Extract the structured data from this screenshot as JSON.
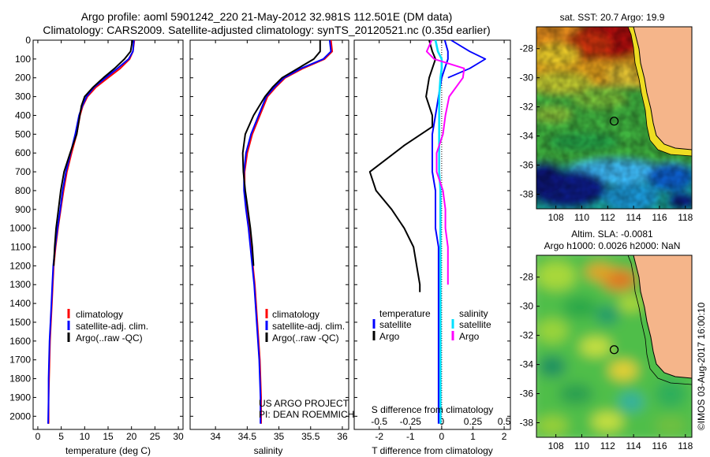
{
  "title": {
    "line1": "Argo profile: aoml 5901242_220 21-May-2012 32.981S 112.501E (DM data)",
    "line2": "Climatology: CARS2009. Satellite-adjusted climatology: synTS_20120521.nc (0.35d earlier)"
  },
  "colors": {
    "climatology": "#ff0000",
    "satellite": "#0000ff",
    "argo": "#000000",
    "salinity_satellite": "#00e0ff",
    "salinity_argo": "#ff00ff",
    "land": "#f5b58a"
  },
  "chart_data": [
    {
      "type": "line",
      "id": "temperature",
      "xlabel": "temperature (deg C)",
      "ylabel": "",
      "xlim": [
        -1,
        31
      ],
      "ylim": [
        2070,
        0
      ],
      "xticks": [
        0,
        5,
        10,
        15,
        20,
        25,
        30
      ],
      "yticks": [
        0,
        100,
        200,
        300,
        400,
        500,
        600,
        700,
        800,
        900,
        1000,
        1100,
        1200,
        1300,
        1400,
        1500,
        1600,
        1700,
        1800,
        1900,
        2000
      ],
      "legend": [
        "climatology",
        "satellite-adj. clim.",
        "Argo(..raw -QC)"
      ],
      "series": [
        {
          "name": "climatology",
          "color": "#ff0000",
          "x": [
            20.6,
            20.3,
            19.6,
            17.6,
            15.0,
            12.4,
            10.6,
            9.6,
            9.0,
            8.3,
            7.2,
            6.2,
            5.5,
            4.9,
            4.3,
            3.8,
            3.4,
            3.2,
            3.0,
            2.8,
            2.6,
            2.5,
            2.4,
            2.3,
            2.3
          ],
          "y": [
            0,
            60,
            100,
            150,
            200,
            250,
            300,
            350,
            400,
            500,
            600,
            700,
            800,
            900,
            1000,
            1100,
            1200,
            1300,
            1400,
            1500,
            1600,
            1700,
            1800,
            1900,
            2040
          ]
        },
        {
          "name": "satellite-adj. clim.",
          "color": "#0000ff",
          "x": [
            20.5,
            20.3,
            19.4,
            17.0,
            14.5,
            12.0,
            10.4,
            9.5,
            8.8,
            8.0,
            7.0,
            6.0,
            5.3,
            4.8,
            4.2,
            3.7,
            3.3,
            3.1,
            2.9,
            2.7,
            2.5,
            2.4,
            2.3,
            2.3,
            2.2
          ],
          "y": [
            0,
            60,
            100,
            150,
            200,
            250,
            300,
            350,
            400,
            500,
            600,
            700,
            800,
            900,
            1000,
            1100,
            1200,
            1300,
            1400,
            1500,
            1600,
            1700,
            1800,
            1900,
            2040
          ]
        },
        {
          "name": "Argo(..raw -QC)",
          "color": "#000000",
          "x": [
            20.2,
            19.8,
            18.5,
            16.4,
            14.0,
            11.8,
            10.0,
            9.3,
            8.3,
            6.9,
            5.6,
            4.9,
            4.4,
            3.9,
            3.6,
            3.4
          ],
          "y": [
            0,
            60,
            100,
            150,
            200,
            250,
            300,
            350,
            500,
            600,
            700,
            800,
            900,
            1000,
            1100,
            1200
          ]
        }
      ]
    },
    {
      "type": "line",
      "id": "salinity",
      "xlabel": "salinity",
      "ylabel": "",
      "xlim": [
        33.6,
        36.1
      ],
      "ylim": [
        2070,
        0
      ],
      "xticks": [
        34,
        34.5,
        35,
        35.5,
        36
      ],
      "legend": [
        "climatology",
        "satellite-adj. clim.",
        "Argo(..raw -QC)"
      ],
      "series": [
        {
          "name": "climatology",
          "color": "#ff0000",
          "x": [
            35.82,
            35.84,
            35.72,
            35.38,
            35.1,
            34.95,
            34.82,
            34.7,
            34.58,
            34.5,
            34.46,
            34.46,
            34.49,
            34.53,
            34.56,
            34.59,
            34.62,
            34.64,
            34.66,
            34.68,
            34.7,
            34.71,
            34.72,
            34.72,
            34.72
          ],
          "y": [
            0,
            60,
            100,
            150,
            200,
            250,
            300,
            400,
            500,
            600,
            700,
            800,
            900,
            1000,
            1100,
            1200,
            1300,
            1400,
            1500,
            1600,
            1700,
            1800,
            1900,
            2000,
            2040
          ]
        },
        {
          "name": "satellite-adj. clim.",
          "color": "#0000ff",
          "x": [
            35.8,
            35.82,
            35.7,
            35.35,
            35.08,
            34.93,
            34.8,
            34.68,
            34.56,
            34.48,
            34.45,
            34.45,
            34.48,
            34.52,
            34.55,
            34.58,
            34.61,
            34.63,
            34.65,
            34.67,
            34.69,
            34.7,
            34.71,
            34.71,
            34.71
          ],
          "y": [
            0,
            60,
            100,
            150,
            200,
            250,
            300,
            400,
            500,
            600,
            700,
            800,
            900,
            1000,
            1100,
            1200,
            1300,
            1400,
            1500,
            1600,
            1700,
            1800,
            1900,
            2000,
            2040
          ]
        },
        {
          "name": "Argo(..raw -QC)",
          "color": "#000000",
          "x": [
            35.65,
            35.65,
            35.55,
            35.3,
            35.05,
            34.9,
            34.78,
            34.6,
            34.47,
            34.43,
            34.44,
            34.47,
            34.51,
            34.55,
            34.58,
            34.6
          ],
          "y": [
            0,
            60,
            100,
            150,
            200,
            250,
            300,
            400,
            500,
            600,
            700,
            800,
            900,
            1000,
            1100,
            1200
          ]
        }
      ]
    },
    {
      "type": "line",
      "id": "differences",
      "xlabel": "T difference from climatology",
      "xlabel2": "S difference from climatology",
      "xlim": [
        -2.8,
        2.2
      ],
      "ylim": [
        2070,
        0
      ],
      "xticks": [
        -2,
        -1,
        0,
        1,
        2
      ],
      "xticks_s": [
        -0.5,
        -0.25,
        0,
        0.25,
        0.5
      ],
      "legend": {
        "temperature_heading": "temperature",
        "salinity_heading": "salinity",
        "satellite": "satellite",
        "argo": "Argo"
      },
      "series": [
        {
          "name": "temperature satellite",
          "color": "#0000ff",
          "x": [
            0.1,
            0.2,
            0.2,
            0.1,
            0.0,
            -0.1,
            -0.2,
            -0.3,
            -0.3,
            -0.3,
            -0.2,
            -0.2,
            -0.2,
            -0.1,
            -0.1,
            -0.1,
            -0.1,
            -0.1,
            -0.1,
            -0.1,
            -0.1,
            -0.1,
            -0.1,
            -0.1
          ],
          "y": [
            0,
            60,
            100,
            150,
            200,
            300,
            400,
            500,
            600,
            700,
            800,
            900,
            1000,
            1100,
            1200,
            1300,
            1400,
            1500,
            1600,
            1700,
            1800,
            1900,
            2000,
            2040
          ]
        },
        {
          "name": "temperature Argo",
          "color": "#000000",
          "x": [
            -0.4,
            -0.3,
            -0.2,
            -0.3,
            -0.4,
            -0.5,
            -0.3,
            -0.3,
            -1.2,
            -2.3,
            -2.1,
            -1.6,
            -1.2,
            -0.9,
            -0.8,
            -0.7,
            -0.7
          ],
          "y": [
            0,
            60,
            100,
            150,
            200,
            300,
            400,
            460,
            560,
            700,
            800,
            900,
            1000,
            1100,
            1200,
            1300,
            1340
          ]
        },
        {
          "name": "salinity satellite",
          "color": "#00e0ff",
          "x": [
            -0.05,
            -0.03,
            0.0,
            0.0,
            -0.01,
            -0.02,
            -0.02,
            -0.02,
            -0.02,
            -0.02,
            -0.01,
            -0.01,
            -0.01,
            -0.01,
            -0.01,
            -0.01,
            -0.01,
            -0.01,
            -0.01,
            -0.01,
            -0.01,
            -0.01,
            -0.01
          ],
          "y": [
            0,
            60,
            100,
            150,
            200,
            300,
            400,
            500,
            600,
            700,
            800,
            900,
            1000,
            1100,
            1200,
            1300,
            1400,
            1500,
            1600,
            1700,
            1800,
            1900,
            2040
          ]
        },
        {
          "name": "salinity Argo",
          "color": "#ff00ff",
          "x": [
            -0.08,
            -0.12,
            -0.06,
            0.18,
            0.17,
            0.06,
            0.03,
            0.01,
            -0.04,
            -0.04,
            0.01,
            0.03,
            0.03,
            0.05,
            0.05,
            0.05
          ],
          "y": [
            0,
            60,
            100,
            150,
            200,
            300,
            400,
            500,
            600,
            700,
            800,
            900,
            1000,
            1100,
            1200,
            1300
          ]
        }
      ],
      "temperature_argo_surface_spike": {
        "x": [
          0.3,
          0.9,
          1.4,
          0.9,
          0.2
        ],
        "y": [
          0,
          60,
          100,
          150,
          200
        ]
      },
      "annotations": [
        "US ARGO PROJECT",
        "PI: DEAN ROEMMICH"
      ]
    },
    {
      "type": "heatmap",
      "id": "sst_map",
      "title": "sat. SST: 20.7  Argo: 19.9",
      "xlim": [
        106.5,
        118.5
      ],
      "ylim": [
        -39,
        -26.5
      ],
      "xticks": [
        108,
        110,
        112,
        114,
        116,
        118
      ],
      "yticks": [
        -28,
        -30,
        -32,
        -34,
        -36,
        -38
      ],
      "marker": {
        "lon": 112.501,
        "lat": -32.981
      }
    },
    {
      "type": "heatmap",
      "id": "sla_map",
      "title": "Altim. SLA: -0.0081",
      "subtitle": "Argo h1000: 0.0026 h2000: NaN",
      "xlim": [
        106.5,
        118.5
      ],
      "ylim": [
        -39,
        -26.5
      ],
      "xticks": [
        108,
        110,
        112,
        114,
        116,
        118
      ],
      "yticks": [
        -28,
        -30,
        -32,
        -34,
        -36,
        -38
      ],
      "marker": {
        "lon": 112.501,
        "lat": -32.981
      }
    }
  ],
  "credit": "©IMOS 03-Aug-2017 16:00:10"
}
